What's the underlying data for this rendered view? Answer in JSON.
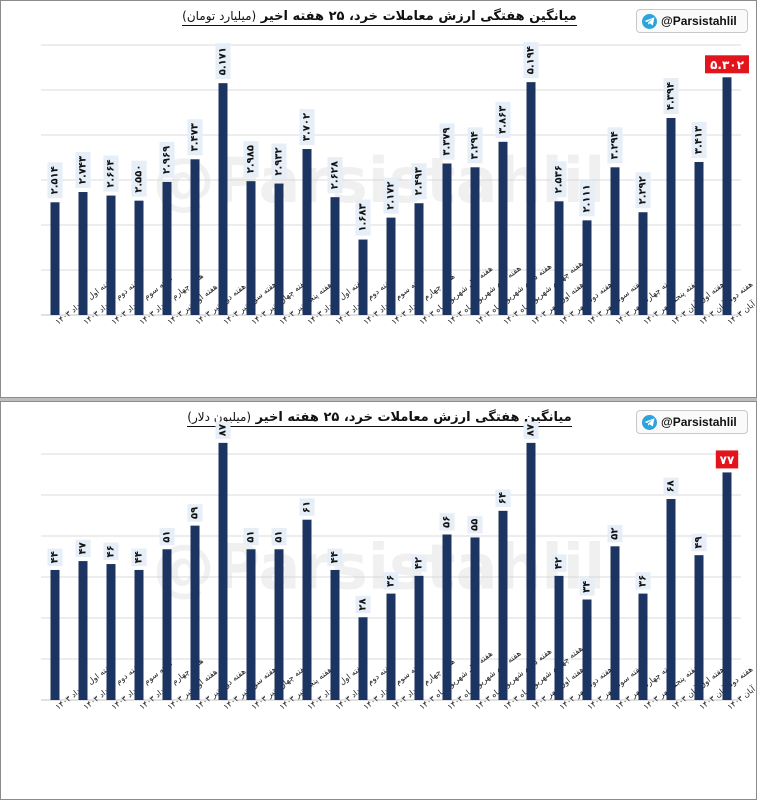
{
  "colors": {
    "bar": "#1c3461",
    "highlight": "#e3151c",
    "label_bg": "#e6eef8",
    "grid": "#cfcfcf"
  },
  "watermark": "@Parsistahlil",
  "badge": {
    "handle": "@Parsistahlil",
    "icon": "telegram-icon"
  },
  "charts": [
    {
      "title": "میانگین هفتگی ارزش معاملات خرد، ۲۵ هفته اخیر",
      "subtitle": "(میلیارد تومان)"
    },
    {
      "title": "میانگین هفتگی ارزش معاملات خرد، ۲۵ هفته اخیر",
      "subtitle": "(میلیون دلار)"
    }
  ],
  "chart_data": [
    {
      "type": "bar",
      "title": "میانگین هفتگی ارزش معاملات خرد، ۲۵ هفته اخیر (میلیارد تومان)",
      "categories": [
        "هفته اول خرداد ۱۴۰۳",
        "هفته دوم خرداد ۱۴۰۳",
        "هفته سوم خرداد ۱۴۰۳",
        "هفته چهارم خرداد ۱۴۰۳",
        "هفته اول تیر ۱۴۰۳",
        "هفته دوم تیر ۱۴۰۳",
        "هفته سوم تیر ۱۴۰۳",
        "هفته چهارم تیر ۱۴۰۳",
        "هفته پنجم تیر ۱۴۰۳",
        "هفته اول مرداد ۱۴۰۳",
        "هفته دوم مرداد ۱۴۰۳",
        "هفته سوم مرداد ۱۴۰۳",
        "هفته چهارم مرداد ۱۴۰۳",
        "هفته اول شهریور ماه ۱۴۰۳",
        "هفته دوم شهریور ماه ۱۴۰۳",
        "هفته سوم شهریور ماه ۱۴۰۳",
        "هفته چهارم شهریور ماه ۱۴۰۳",
        "هفته اول مهر ۱۴۰۳",
        "هفته دوم مهر ۱۴۰۳",
        "هفته سوم مهر ۱۴۰۳",
        "هفته چهارم مهر ۱۴۰۳",
        "هفته پنجم مهر ۱۴۰۳",
        "هفته اول آبان ۱۴۰۳",
        "هفته دوم آبان ۱۴۰۳",
        "هفته سوم آبان ۱۴۰۳"
      ],
      "values": [
        2.514,
        2.743,
        2.664,
        2.55,
        2.969,
        3.473,
        5.171,
        2.985,
        2.932,
        3.702,
        2.628,
        1.683,
        2.172,
        2.493,
        3.379,
        3.294,
        3.863,
        5.194,
        2.536,
        2.111,
        3.294,
        2.292,
        4.394,
        3.413,
        5.302
      ],
      "value_labels": [
        "۲.۵۱۴",
        "۲.۷۴۳",
        "۲.۶۶۴",
        "۲.۵۵۰",
        "۲.۹۶۹",
        "۳.۴۷۳",
        "۵.۱۷۱",
        "۲.۹۸۵",
        "۲.۹۳۲",
        "۳.۷۰۲",
        "۲.۶۲۸",
        "۱.۶۸۳",
        "۲.۱۷۲",
        "۲.۴۹۳",
        "۳.۳۷۹",
        "۳.۲۹۴",
        "۳.۸۶۳",
        "۵.۱۹۴",
        "۲.۵۳۶",
        "۲.۱۱۱",
        "۳.۲۹۴",
        "۲.۲۹۲",
        "۴.۳۹۴",
        "۳.۴۱۳",
        "۵.۳۰۲"
      ],
      "highlight_index": 24,
      "ylim": [
        0,
        6
      ],
      "grid": true
    },
    {
      "type": "bar",
      "title": "میانگین هفتگی ارزش معاملات خرد، ۲۵ هفته اخیر (میلیون دلار)",
      "categories": [
        "هفته اول خرداد ۱۴۰۳",
        "هفته دوم خرداد ۱۴۰۳",
        "هفته سوم خرداد ۱۴۰۳",
        "هفته چهارم خرداد ۱۴۰۳",
        "هفته اول تیر ۱۴۰۳",
        "هفته دوم تیر ۱۴۰۳",
        "هفته سوم تیر ۱۴۰۳",
        "هفته چهارم تیر ۱۴۰۳",
        "هفته پنجم تیر ۱۴۰۳",
        "هفته اول مرداد ۱۴۰۳",
        "هفته دوم مرداد ۱۴۰۳",
        "هفته سوم مرداد ۱۴۰۳",
        "هفته چهارم مرداد ۱۴۰۳",
        "هفته اول شهریور ماه ۱۴۰۳",
        "هفته دوم شهریور ماه ۱۴۰۳",
        "هفته سوم شهریور ماه ۱۴۰۳",
        "هفته چهارم شهریور ماه ۱۴۰۳",
        "هفته اول مهر ۱۴۰۳",
        "هفته دوم مهر ۱۴۰۳",
        "هفته سوم مهر ۱۴۰۳",
        "هفته چهارم مهر ۱۴۰۳",
        "هفته پنجم مهر ۱۴۰۳",
        "هفته اول آبان ۱۴۰۳",
        "هفته دوم آبان ۱۴۰۳",
        "هفته سوم آبان ۱۴۰۳"
      ],
      "values": [
        44,
        47,
        46,
        44,
        51,
        59,
        87,
        51,
        51,
        61,
        44,
        28,
        36,
        42,
        56,
        55,
        64,
        87,
        42,
        34,
        52,
        36,
        68,
        49,
        77
      ],
      "value_labels": [
        "۴۴",
        "۴۷",
        "۴۶",
        "۴۴",
        "۵۱",
        "۵۹",
        "۸۷",
        "۵۱",
        "۵۱",
        "۶۱",
        "۴۴",
        "۲۸",
        "۳۶",
        "۴۲",
        "۵۶",
        "۵۵",
        "۶۴",
        "۸۷",
        "۴۲",
        "۳۴",
        "۵۲",
        "۳۶",
        "۶۸",
        "۴۹",
        "۷۷"
      ],
      "highlight_index": 24,
      "ylim": [
        0,
        90
      ],
      "grid": true
    }
  ]
}
